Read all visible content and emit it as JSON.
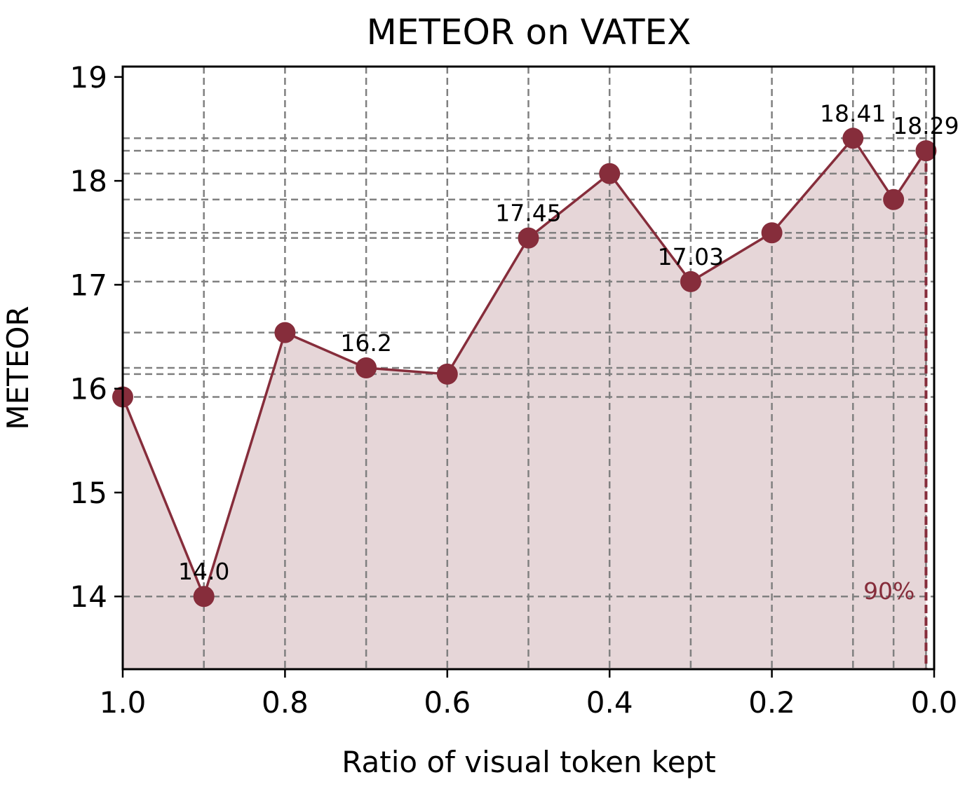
{
  "chart_data": {
    "type": "line",
    "title": "METEOR on VATEX",
    "xlabel": "Ratio of visual token kept",
    "ylabel": "METEOR",
    "xlim": [
      1.0,
      0.0
    ],
    "ylim": [
      13.3,
      19.1
    ],
    "x_reversed": true,
    "xticks": [
      1.0,
      0.8,
      0.6,
      0.4,
      0.2,
      0.0
    ],
    "xtick_labels": [
      "1.0",
      "0.8",
      "0.6",
      "0.4",
      "0.2",
      "0.0"
    ],
    "yticks": [
      14,
      15,
      16,
      17,
      18,
      19
    ],
    "ytick_labels": [
      "14",
      "15",
      "16",
      "17",
      "18",
      "19"
    ],
    "grid": true,
    "fill_under": true,
    "series": [
      {
        "x": [
          1.0,
          0.9,
          0.8,
          0.7,
          0.6,
          0.5,
          0.4,
          0.3,
          0.2,
          0.1,
          0.05,
          0.01
        ],
        "y": [
          15.92,
          14.0,
          16.54,
          16.2,
          16.14,
          17.45,
          18.07,
          17.03,
          17.5,
          18.41,
          17.82,
          18.29
        ],
        "color": "#862d3b"
      }
    ],
    "data_labels": [
      {
        "x": 0.9,
        "y": 14.0,
        "text": "14.0"
      },
      {
        "x": 0.7,
        "y": 16.2,
        "text": "16.2"
      },
      {
        "x": 0.5,
        "y": 17.45,
        "text": "17.45"
      },
      {
        "x": 0.3,
        "y": 17.03,
        "text": "17.03"
      },
      {
        "x": 0.1,
        "y": 18.41,
        "text": "18.41"
      },
      {
        "x": 0.01,
        "y": 18.29,
        "text": "18.29"
      }
    ],
    "reference_line": {
      "x": 0.01,
      "label": "90%",
      "color": "#862d3b"
    },
    "colors": {
      "line": "#862d3b",
      "fill": "#e6d6d8",
      "grid": "#808080"
    }
  }
}
